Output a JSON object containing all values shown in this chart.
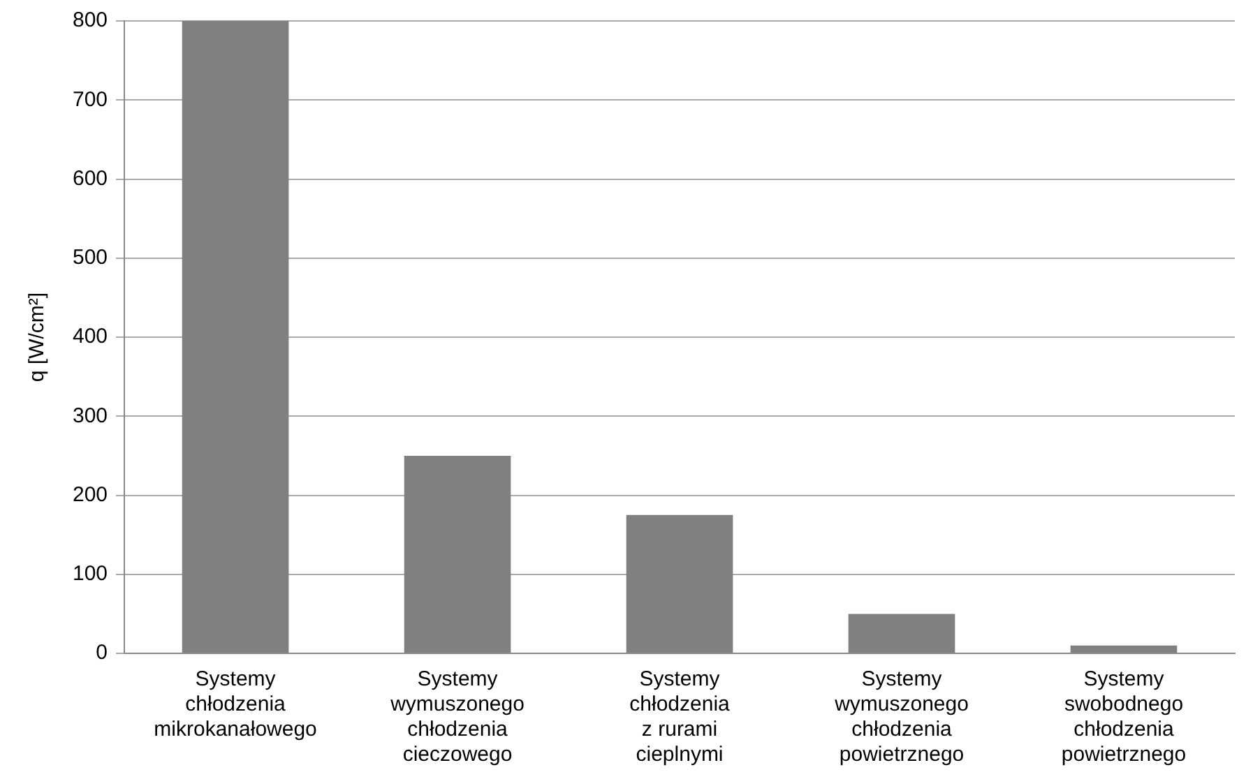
{
  "chart_data": {
    "type": "bar",
    "ylabel": "q [W/cm²]",
    "categories": [
      "Systemy\nchłodzenia\nmikrokanałowego",
      "Systemy\nwymuszonego\nchłodzenia\ncieczowego",
      "Systemy\nchłodzenia\nz rurami\ncieplnymi",
      "Systemy\nwymuszonego\nchłodzenia\npowietrznego",
      "Systemy\nswobodnego\nchłodzenia\npowietrznego"
    ],
    "values": [
      800,
      250,
      175,
      50,
      10
    ],
    "color": "#808080",
    "ylim": [
      0,
      800
    ],
    "yticks": [
      0,
      100,
      200,
      300,
      400,
      500,
      600,
      700,
      800
    ],
    "grid": "y",
    "legend": false
  }
}
